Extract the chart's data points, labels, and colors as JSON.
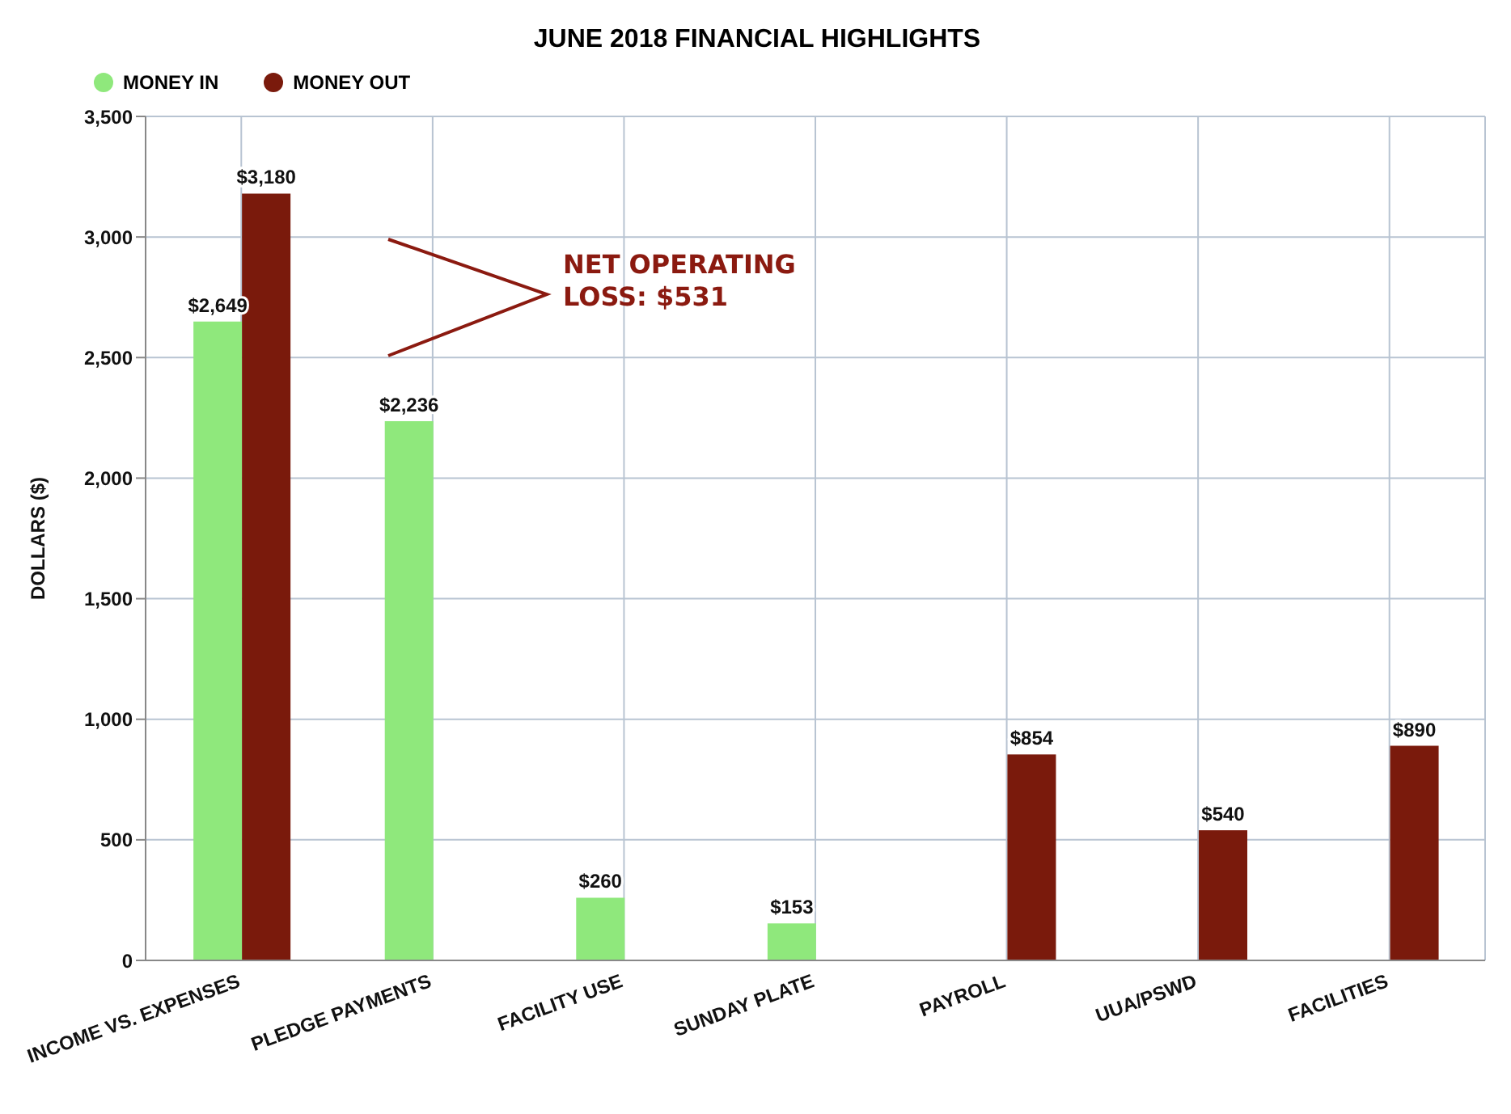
{
  "chart_data": {
    "type": "bar",
    "title": "JUNE 2018 FINANCIAL HIGHLIGHTS",
    "ylabel": "DOLLARS ($)",
    "categories": [
      "INCOME VS. EXPENSES",
      "PLEDGE PAYMENTS",
      "FACILITY USE",
      "SUNDAY PLATE",
      "PAYROLL",
      "UUA/PSWD",
      "FACILITIES"
    ],
    "series": [
      {
        "name": "MONEY IN",
        "color": "#8fe87c",
        "values": [
          2649,
          2236,
          260,
          153,
          null,
          null,
          null
        ],
        "value_labels": [
          "$2,649",
          "$2,236",
          "$260",
          "$153",
          null,
          null,
          null
        ]
      },
      {
        "name": "MONEY OUT",
        "color": "#7a1a0c",
        "values": [
          3180,
          null,
          null,
          null,
          854,
          540,
          890
        ],
        "value_labels": [
          "$3,180",
          null,
          null,
          null,
          "$854",
          "$540",
          "$890"
        ]
      }
    ],
    "ylim": [
      0,
      3500
    ],
    "yticks": [
      0,
      500,
      {
        "value": 1000,
        "label": "1,000"
      },
      {
        "value": 1500,
        "label": "1,500"
      },
      {
        "value": 2000,
        "label": "2,000"
      },
      {
        "value": 2500,
        "label": "2,500"
      },
      {
        "value": 3000,
        "label": "3,000"
      },
      {
        "value": 3500,
        "label": "3,500"
      }
    ],
    "grid": true,
    "legend": "top left",
    "annotations": [
      "NET OPERATING LOSS: $531"
    ]
  }
}
